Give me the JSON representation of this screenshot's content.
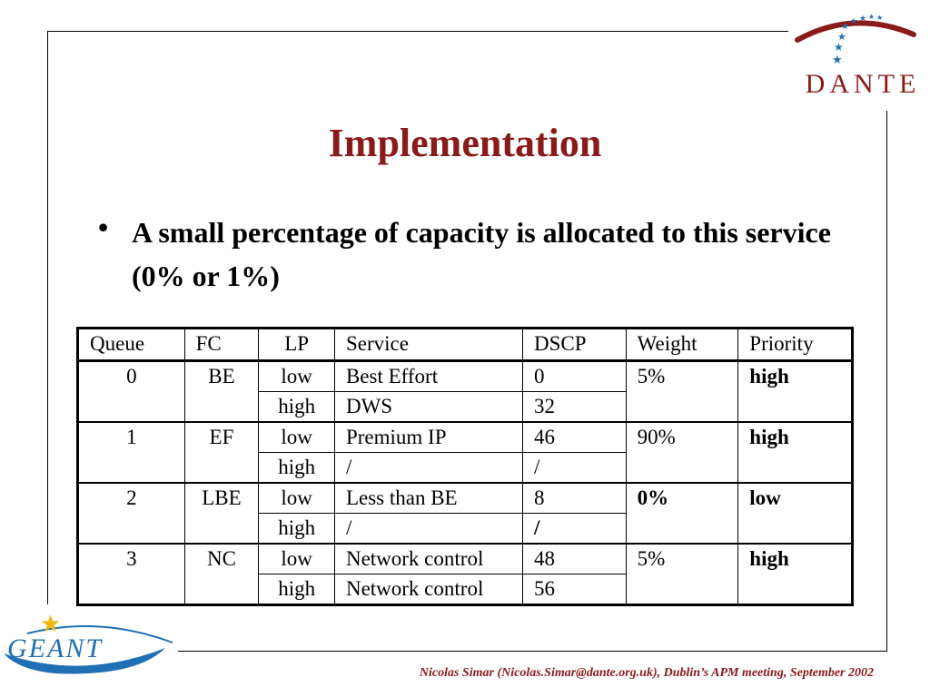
{
  "logos": {
    "top_right": "DANTE",
    "bottom_left": "GEANT"
  },
  "slide": {
    "title": "Implementation",
    "bullet_symbol": "•",
    "bullet_text": "A small percentage of capacity is allocated to this service (0% or 1%)"
  },
  "table": {
    "headers": [
      "Queue",
      "FC",
      "LP",
      "Service",
      "DSCP",
      "Weight",
      "Priority"
    ],
    "groups": [
      {
        "queue": "0",
        "fc": "BE",
        "weight": "5%",
        "priority": "high",
        "rows": [
          {
            "lp": "low",
            "service": "Best Effort",
            "dscp": "0"
          },
          {
            "lp": "high",
            "service": "DWS",
            "dscp": "32"
          }
        ]
      },
      {
        "queue": "1",
        "fc": "EF",
        "weight": "90%",
        "priority": "high",
        "rows": [
          {
            "lp": "low",
            "service": "Premium IP",
            "dscp": "46"
          },
          {
            "lp": "high",
            "service": "/",
            "dscp": "/"
          }
        ]
      },
      {
        "queue": "2",
        "fc": "LBE",
        "weight": "0%",
        "priority": "low",
        "rows": [
          {
            "lp": "low",
            "service": "Less than BE",
            "dscp": "8"
          },
          {
            "lp": "high",
            "service": "/",
            "dscp": "/"
          }
        ]
      },
      {
        "queue": "3",
        "fc": "NC",
        "weight": "5%",
        "priority": "high",
        "rows": [
          {
            "lp": "low",
            "service": "Network control",
            "dscp": "48"
          },
          {
            "lp": "high",
            "service": "Network control",
            "dscp": "56"
          }
        ]
      }
    ]
  },
  "footer": "Nicolas Simar (Nicolas.Simar@dante.org.uk), Dublin’s APM meeting, September 2002",
  "colors": {
    "title": "#8b1a1a",
    "footer": "#8b1a1a",
    "dante_arc": "#8b1a1a",
    "dante_stars": "#1f6fb5",
    "geant_text": "#1f6fb5",
    "geant_star": "#f2b705"
  }
}
